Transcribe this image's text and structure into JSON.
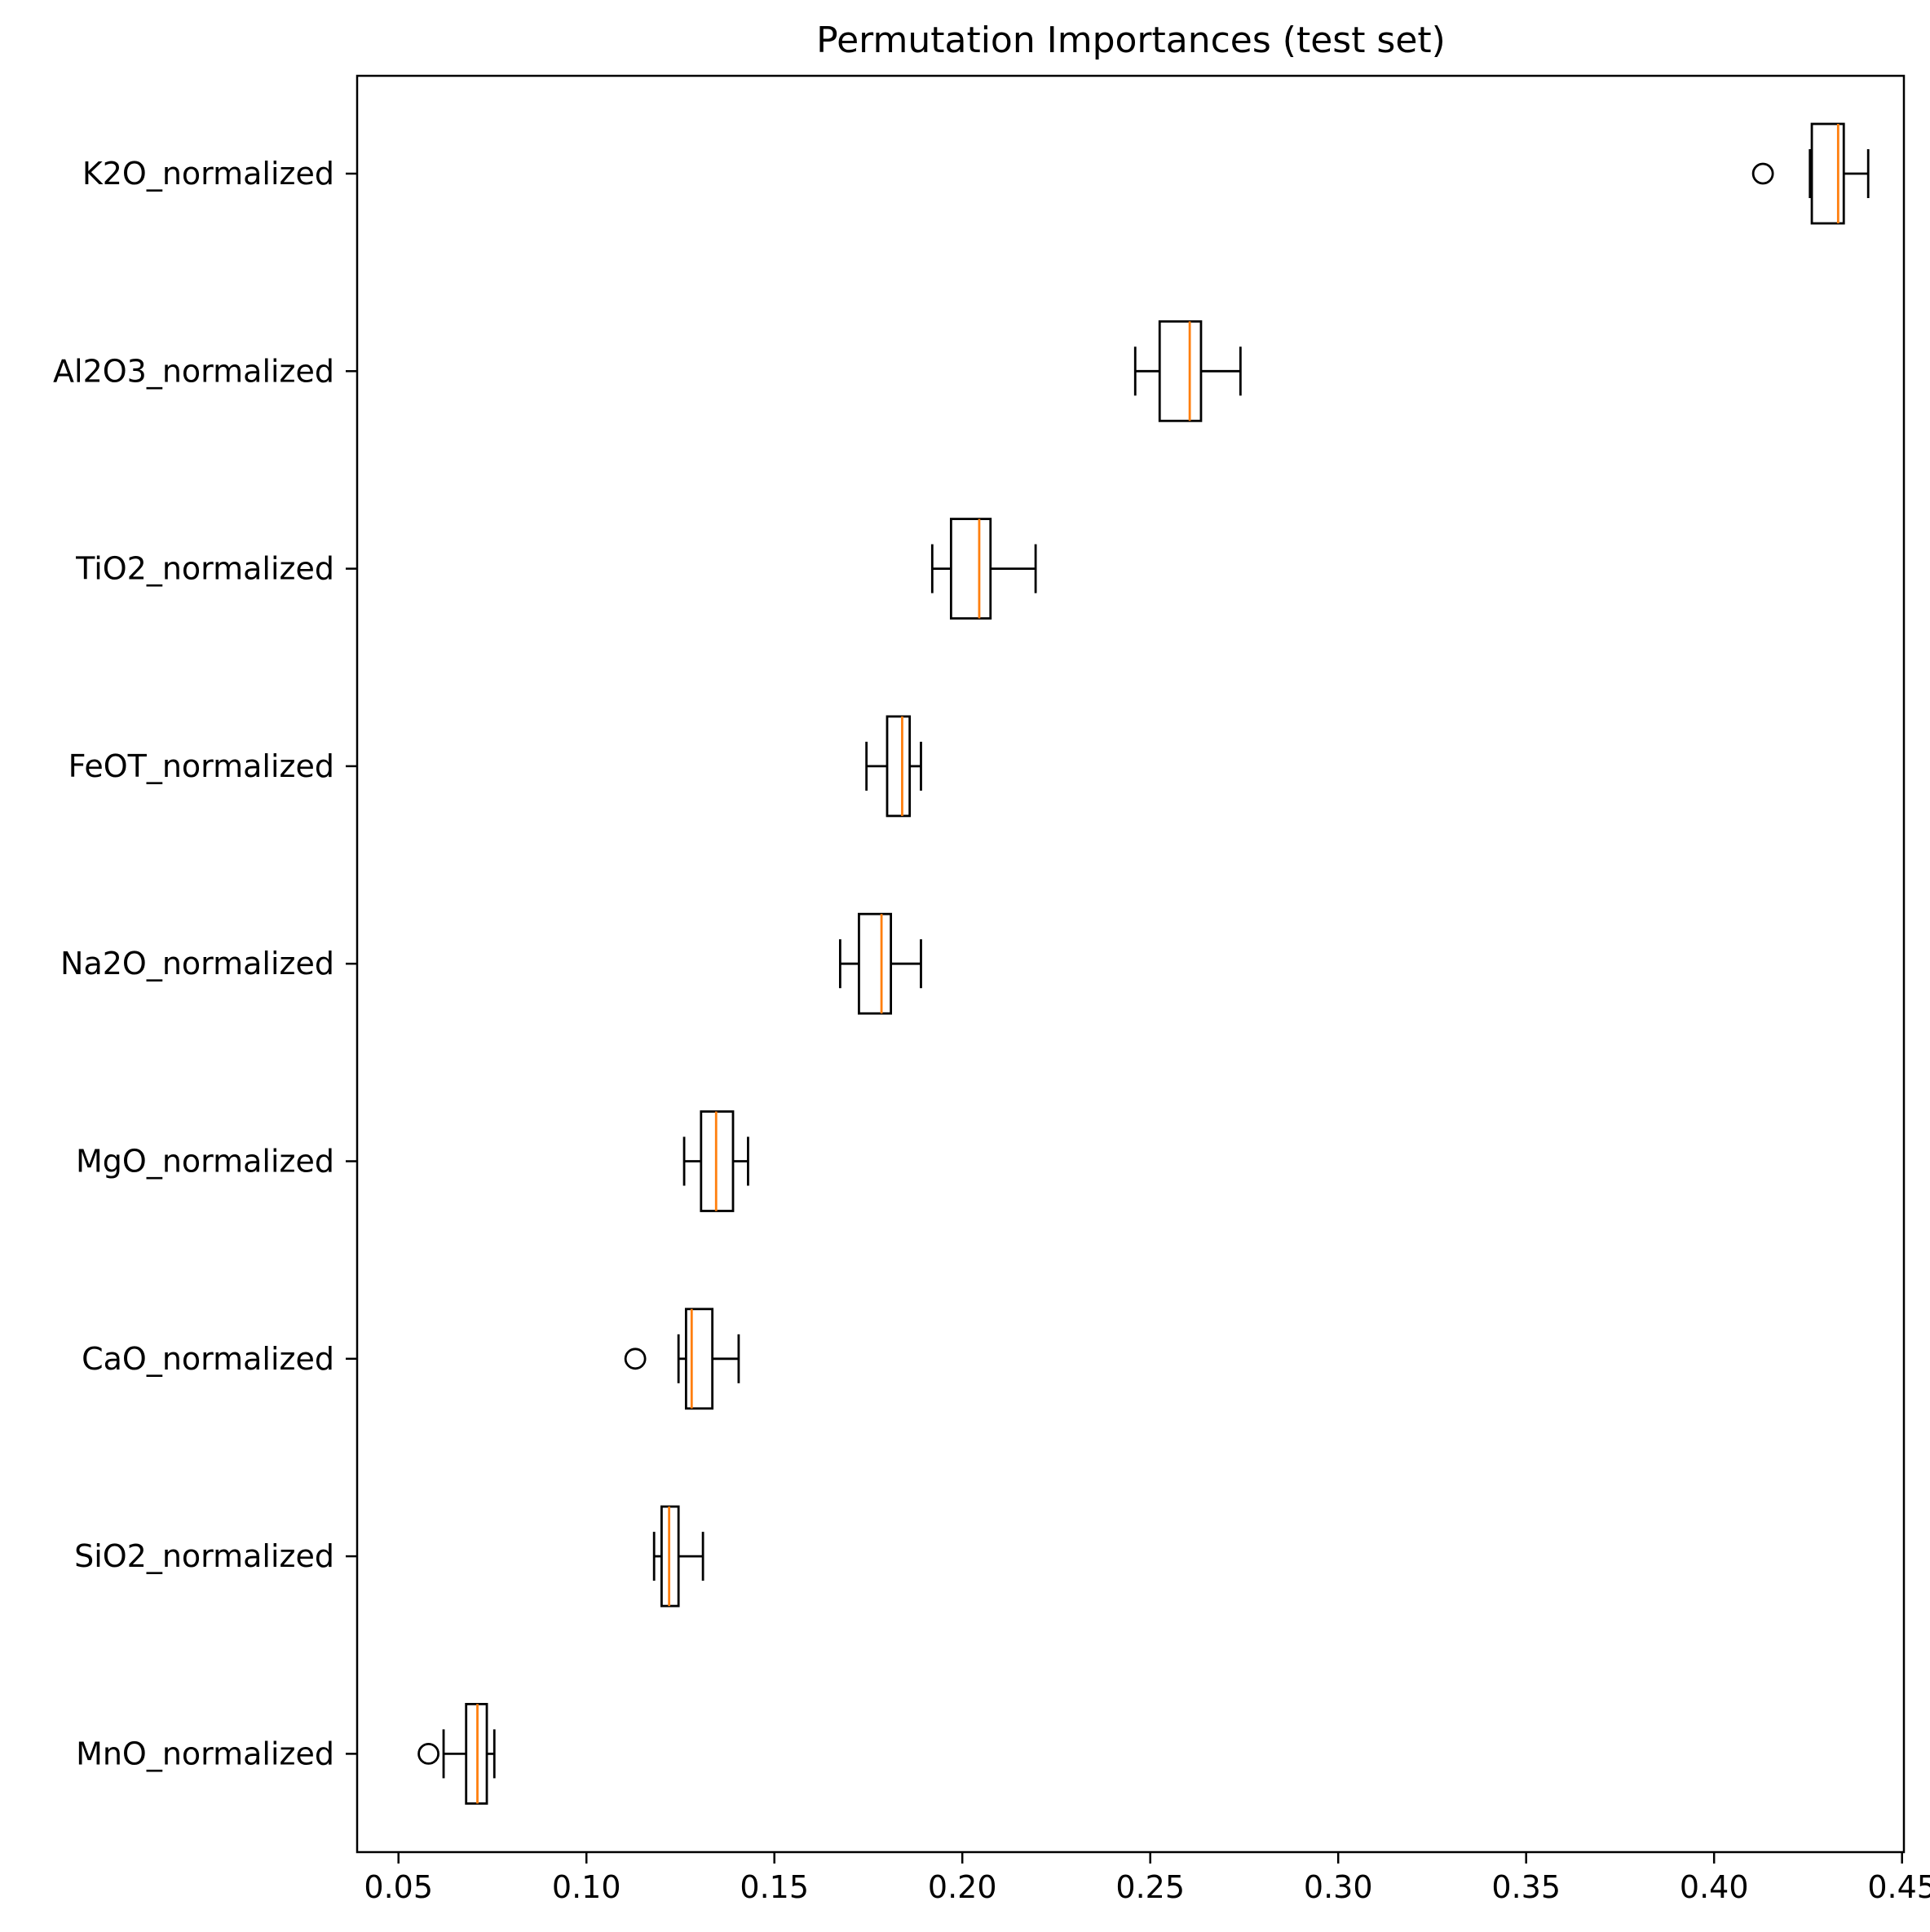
{
  "chart_data": {
    "type": "boxplot",
    "orientation": "horizontal",
    "title": "Permutation Importances (test set)",
    "xlabel": "",
    "ylabel": "",
    "xlim": [
      0.039,
      0.4505
    ],
    "xticks": [
      0.05,
      0.1,
      0.15,
      0.2,
      0.25,
      0.3,
      0.35,
      0.4,
      0.45
    ],
    "xtick_labels": [
      "0.05",
      "0.10",
      "0.15",
      "0.20",
      "0.25",
      "0.30",
      "0.35",
      "0.40",
      "0.45"
    ],
    "grid": false,
    "legend": "none",
    "colors": {
      "box": "#000000",
      "median": "#ff7f0e",
      "flier": "#000000",
      "axes": "#000000",
      "background": "#ffffff"
    },
    "categories": [
      "K2O_normalized",
      "Al2O3_normalized",
      "TiO2_normalized",
      "FeOT_normalized",
      "Na2O_normalized",
      "MgO_normalized",
      "CaO_normalized",
      "SiO2_normalized",
      "MnO_normalized"
    ],
    "boxes": [
      {
        "label": "K2O_normalized",
        "whislo": 0.4255,
        "q1": 0.426,
        "med": 0.433,
        "q3": 0.4345,
        "whishi": 0.441,
        "fliers": [
          0.413
        ]
      },
      {
        "label": "Al2O3_normalized",
        "whislo": 0.246,
        "q1": 0.2525,
        "med": 0.2605,
        "q3": 0.2635,
        "whishi": 0.274,
        "fliers": []
      },
      {
        "label": "TiO2_normalized",
        "whislo": 0.192,
        "q1": 0.197,
        "med": 0.2045,
        "q3": 0.2075,
        "whishi": 0.2195,
        "fliers": []
      },
      {
        "label": "FeOT_normalized",
        "whislo": 0.1745,
        "q1": 0.18,
        "med": 0.184,
        "q3": 0.186,
        "whishi": 0.189,
        "fliers": []
      },
      {
        "label": "Na2O_normalized",
        "whislo": 0.1675,
        "q1": 0.1725,
        "med": 0.1785,
        "q3": 0.181,
        "whishi": 0.189,
        "fliers": []
      },
      {
        "label": "MgO_normalized",
        "whislo": 0.126,
        "q1": 0.1305,
        "med": 0.1345,
        "q3": 0.139,
        "whishi": 0.143,
        "fliers": []
      },
      {
        "label": "CaO_normalized",
        "whislo": 0.1245,
        "q1": 0.1265,
        "med": 0.128,
        "q3": 0.1335,
        "whishi": 0.1405,
        "fliers": [
          0.113
        ]
      },
      {
        "label": "SiO2_normalized",
        "whislo": 0.118,
        "q1": 0.12,
        "med": 0.122,
        "q3": 0.1245,
        "whishi": 0.131,
        "fliers": []
      },
      {
        "label": "MnO_normalized",
        "whislo": 0.062,
        "q1": 0.068,
        "med": 0.071,
        "q3": 0.0735,
        "whishi": 0.0755,
        "fliers": [
          0.058
        ]
      }
    ]
  }
}
